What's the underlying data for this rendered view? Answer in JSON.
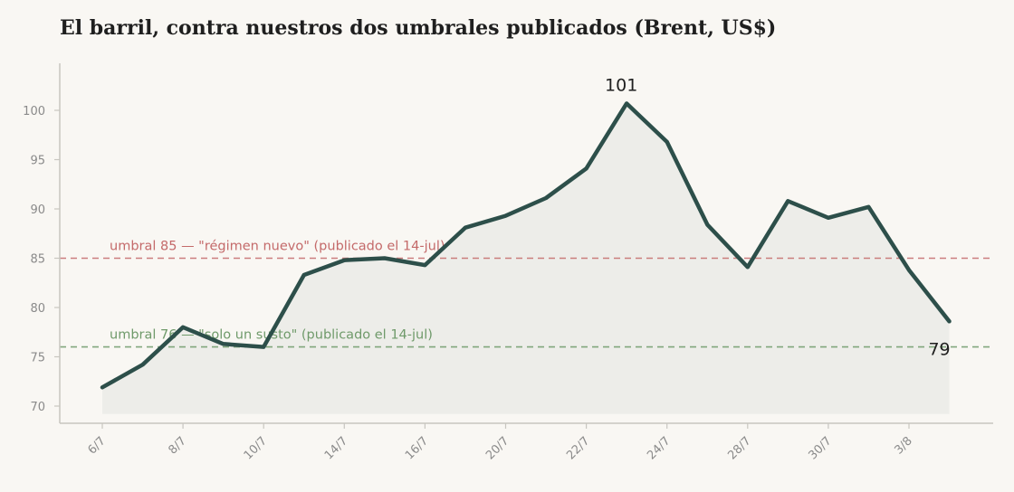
{
  "title": "El barril, contra nuestros dos umbrales publicados (Brent, US$)",
  "colors": {
    "line": "#2d4f4a",
    "area": "#ecece8",
    "axis": "#c8c6c0",
    "tick_text": "#8a8a8a",
    "threshold_high": "#c46a6a",
    "threshold_low": "#6f9a6a",
    "background": "#f9f7f3"
  },
  "chart_data": {
    "type": "area",
    "title": "El barril, contra nuestros dos umbrales publicados (Brent, US$)",
    "xlabel": "",
    "ylabel": "",
    "ylim": [
      69.2,
      104.5
    ],
    "yticks": [
      70,
      75,
      80,
      85,
      90,
      95,
      100
    ],
    "x_tick_labels": [
      "6/7",
      "8/7",
      "10/7",
      "14/7",
      "16/7",
      "20/7",
      "22/7",
      "24/7",
      "28/7",
      "30/7",
      "3/8"
    ],
    "grid": false,
    "series": [
      {
        "values": [
          71.9,
          74.2,
          78.0,
          76.3,
          76.0,
          83.3,
          84.8,
          85.0,
          84.3,
          88.1,
          89.3,
          91.1,
          94.1,
          100.7,
          96.8,
          88.4,
          84.1,
          90.8,
          89.1,
          90.2,
          83.8,
          78.6
        ]
      }
    ],
    "thresholds": [
      {
        "value": 85,
        "label": "umbral 85 — \"régimen nuevo\" (publicado el 14-jul)",
        "color": "#c46a6a"
      },
      {
        "value": 76,
        "label": "umbral 76 — \"solo un susto\" (publicado el 14-jul)",
        "color": "#6f9a6a"
      }
    ],
    "annotations": [
      {
        "index": 13,
        "text": "101"
      },
      {
        "index": 21,
        "text": "79"
      }
    ]
  }
}
